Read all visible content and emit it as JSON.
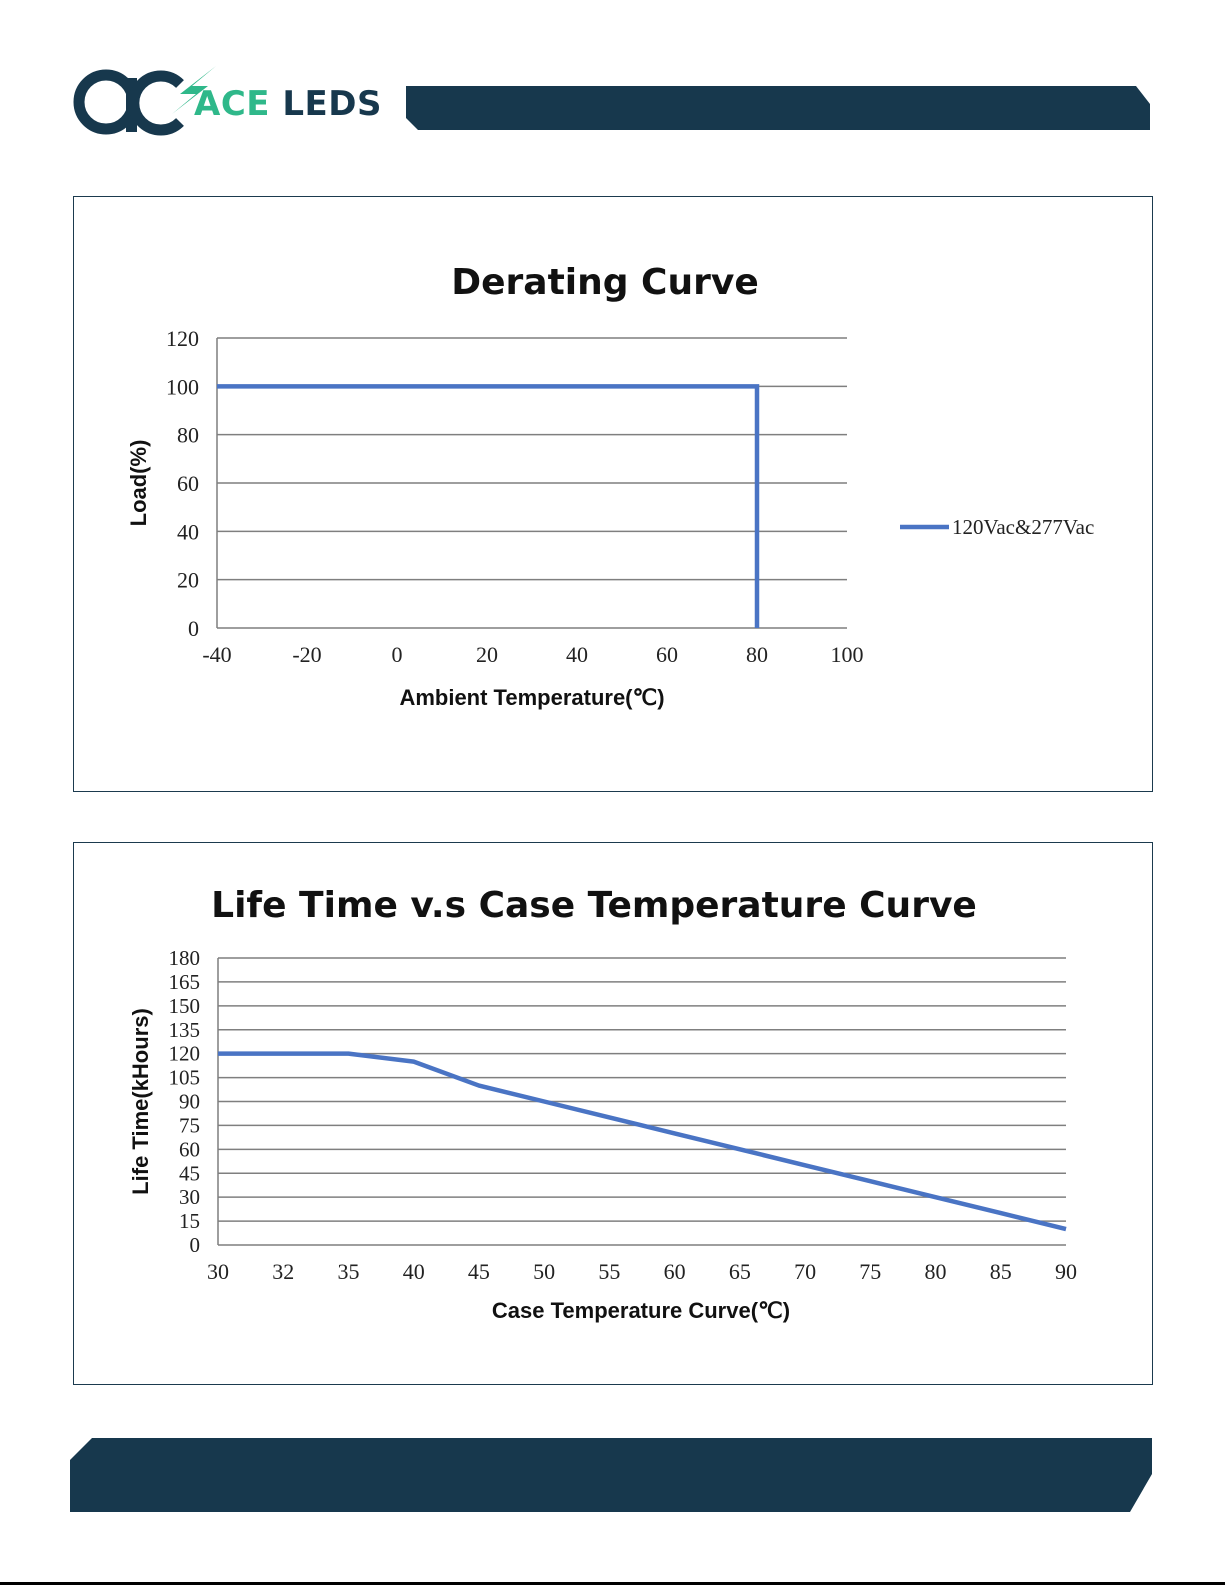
{
  "brand": {
    "name": "ACE LEDS",
    "colors": {
      "navy": "#17384d",
      "green": "#2fb88a"
    }
  },
  "page_colors": {
    "band": "#17384d",
    "frame": "#1b3a4e",
    "line": "#4a74c4",
    "grid": "#7f7f7f"
  },
  "chart_data": [
    {
      "type": "line",
      "title": "Derating Curve",
      "xlabel": "Ambient Temperature(℃)",
      "ylabel": "Load(%)",
      "x_ticks": [
        "-40",
        "-20",
        "0",
        "20",
        "40",
        "60",
        "80",
        "100"
      ],
      "y_ticks": [
        "0",
        "20",
        "40",
        "60",
        "80",
        "100",
        "120"
      ],
      "xlim": [
        -40,
        100
      ],
      "ylim": [
        0,
        120
      ],
      "grid": true,
      "legend_position": "right",
      "series": [
        {
          "name": "120Vac&277Vac",
          "x": [
            -40,
            80,
            80
          ],
          "y": [
            100,
            100,
            0
          ]
        }
      ]
    },
    {
      "type": "line",
      "title": "Life Time v.s Case Temperature Curve",
      "xlabel": "Case Temperature Curve(℃)",
      "ylabel": "Life Time(kHours)",
      "categories": [
        "30",
        "32",
        "35",
        "40",
        "45",
        "50",
        "55",
        "60",
        "65",
        "70",
        "75",
        "80",
        "85",
        "90"
      ],
      "y_ticks": [
        "0",
        "15",
        "30",
        "45",
        "60",
        "75",
        "90",
        "105",
        "120",
        "135",
        "150",
        "165",
        "180"
      ],
      "ylim": [
        0,
        180
      ],
      "grid": true,
      "series": [
        {
          "values": [
            120,
            120,
            120,
            115,
            100,
            90,
            80,
            70,
            60,
            50,
            40,
            30,
            20,
            10
          ]
        }
      ]
    }
  ]
}
